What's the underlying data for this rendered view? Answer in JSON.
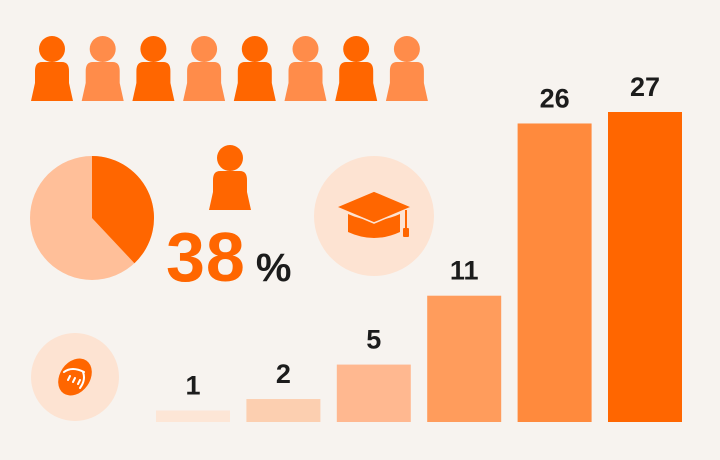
{
  "chart_data": {
    "type": "bar",
    "values": [
      1,
      2,
      5,
      11,
      26,
      27
    ],
    "value_labels": [
      "1",
      "2",
      "5",
      "11",
      "26",
      "27"
    ],
    "bar_colors": [
      "#fde6d6",
      "#fccfb0",
      "#ffb890",
      "#ff9c5c",
      "#ff8a3d",
      "#ff6600"
    ],
    "ylim": [
      0,
      27
    ]
  },
  "pie": {
    "share_percent": 38,
    "colors": {
      "highlight": "#ff6600",
      "rest": "#ffbf99"
    }
  },
  "headline": {
    "value": "38",
    "unit": "%"
  },
  "people_row": {
    "count": 8,
    "colors": [
      "#ff6600",
      "#ff8c4a",
      "#ff6600",
      "#ff8c4a",
      "#ff6600",
      "#ff8c4a",
      "#ff6600",
      "#ff8c4a"
    ]
  },
  "icons": [
    "person-icon",
    "graduation-cap-icon",
    "sports-ball-icon"
  ],
  "colors": {
    "accent": "#ff6600",
    "background": "#f7f3ef",
    "circle_bg": "#fde3d2",
    "label": "#1c1c1c"
  }
}
